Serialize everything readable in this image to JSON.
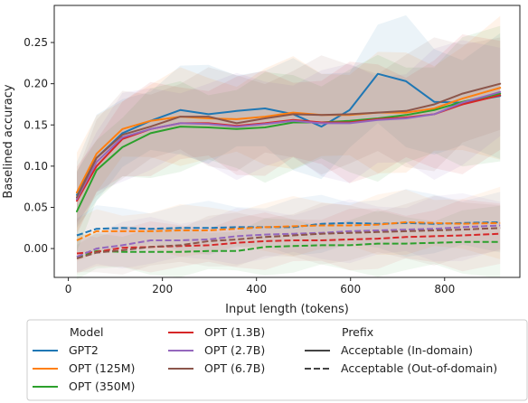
{
  "chart_data": {
    "type": "line",
    "xlabel": "Input length (tokens)",
    "ylabel": "Baselined accuracy",
    "xlim": [
      -30,
      960
    ],
    "ylim": [
      -0.035,
      0.295
    ],
    "xticks": [
      0,
      200,
      400,
      600,
      800
    ],
    "yticks": [
      0.0,
      0.05,
      0.1,
      0.15,
      0.2,
      0.25
    ],
    "ytick_labels": [
      "0.00",
      "0.05",
      "0.10",
      "0.15",
      "0.20",
      "0.25"
    ],
    "grid": false,
    "legend_placement": "below",
    "x": [
      18,
      60,
      115,
      175,
      238,
      298,
      358,
      418,
      478,
      538,
      598,
      658,
      718,
      778,
      838,
      918
    ],
    "series": [
      {
        "name": "GPT2",
        "prefix": "Acceptable (In-domain)",
        "color": "#1f77b4",
        "dash": "solid",
        "values": [
          0.065,
          0.11,
          0.14,
          0.155,
          0.168,
          0.163,
          0.167,
          0.17,
          0.163,
          0.148,
          0.168,
          0.212,
          0.203,
          0.178,
          0.177,
          0.185
        ]
      },
      {
        "name": "OPT (125M)",
        "prefix": "Acceptable (In-domain)",
        "color": "#ff7f0e",
        "dash": "solid",
        "values": [
          0.068,
          0.115,
          0.145,
          0.155,
          0.16,
          0.158,
          0.157,
          0.16,
          0.165,
          0.162,
          0.162,
          0.165,
          0.165,
          0.17,
          0.182,
          0.195
        ]
      },
      {
        "name": "OPT (350M)",
        "prefix": "Acceptable (In-domain)",
        "color": "#2ca02c",
        "dash": "solid",
        "values": [
          0.045,
          0.095,
          0.123,
          0.14,
          0.148,
          0.147,
          0.145,
          0.147,
          0.153,
          0.153,
          0.155,
          0.158,
          0.162,
          0.168,
          0.178,
          0.188
        ]
      },
      {
        "name": "OPT (1.3B)",
        "prefix": "Acceptable (In-domain)",
        "color": "#d62728",
        "dash": "solid",
        "values": [
          0.058,
          0.1,
          0.133,
          0.145,
          0.152,
          0.152,
          0.149,
          0.152,
          0.156,
          0.153,
          0.153,
          0.157,
          0.159,
          0.163,
          0.175,
          0.186
        ]
      },
      {
        "name": "OPT (2.7B)",
        "prefix": "Acceptable (In-domain)",
        "color": "#9467bd",
        "dash": "solid",
        "values": [
          0.06,
          0.105,
          0.135,
          0.145,
          0.152,
          0.151,
          0.148,
          0.151,
          0.155,
          0.152,
          0.152,
          0.156,
          0.158,
          0.163,
          0.177,
          0.19
        ]
      },
      {
        "name": "OPT (6.7B)",
        "prefix": "Acceptable (In-domain)",
        "color": "#8c564b",
        "dash": "solid",
        "values": [
          0.062,
          0.11,
          0.138,
          0.148,
          0.16,
          0.16,
          0.152,
          0.158,
          0.163,
          0.162,
          0.163,
          0.165,
          0.167,
          0.175,
          0.188,
          0.2
        ]
      },
      {
        "name": "GPT2",
        "prefix": "Acceptable (Out-of-domain)",
        "color": "#1f77b4",
        "dash": "dashed",
        "values": [
          0.016,
          0.024,
          0.025,
          0.024,
          0.025,
          0.025,
          0.026,
          0.026,
          0.026,
          0.03,
          0.031,
          0.03,
          0.031,
          0.03,
          0.031,
          0.032
        ]
      },
      {
        "name": "OPT (125M)",
        "prefix": "Acceptable (Out-of-domain)",
        "color": "#ff7f0e",
        "dash": "dashed",
        "values": [
          0.01,
          0.021,
          0.021,
          0.021,
          0.022,
          0.022,
          0.024,
          0.026,
          0.027,
          0.028,
          0.028,
          0.029,
          0.032,
          0.031,
          0.03,
          0.031
        ]
      },
      {
        "name": "OPT (350M)",
        "prefix": "Acceptable (Out-of-domain)",
        "color": "#2ca02c",
        "dash": "dashed",
        "values": [
          -0.01,
          -0.003,
          -0.004,
          -0.004,
          -0.004,
          -0.003,
          -0.003,
          0.002,
          0.003,
          0.004,
          0.004,
          0.006,
          0.006,
          0.007,
          0.008,
          0.008
        ]
      },
      {
        "name": "OPT (1.3B)",
        "prefix": "Acceptable (Out-of-domain)",
        "color": "#d62728",
        "dash": "dashed",
        "values": [
          -0.006,
          -0.004,
          0.001,
          0.002,
          0.003,
          0.004,
          0.007,
          0.009,
          0.01,
          0.01,
          0.011,
          0.012,
          0.014,
          0.015,
          0.016,
          0.018
        ]
      },
      {
        "name": "OPT (2.7B)",
        "prefix": "Acceptable (Out-of-domain)",
        "color": "#9467bd",
        "dash": "dashed",
        "values": [
          -0.01,
          0.0,
          0.004,
          0.01,
          0.01,
          0.011,
          0.015,
          0.017,
          0.018,
          0.019,
          0.021,
          0.022,
          0.023,
          0.024,
          0.026,
          0.028
        ]
      },
      {
        "name": "OPT (6.7B)",
        "prefix": "Acceptable (Out-of-domain)",
        "color": "#8c564b",
        "dash": "dashed",
        "values": [
          -0.012,
          -0.005,
          -0.002,
          0.002,
          0.004,
          0.009,
          0.011,
          0.014,
          0.016,
          0.018,
          0.019,
          0.02,
          0.021,
          0.022,
          0.023,
          0.025
        ]
      }
    ],
    "legend": {
      "model_title": "Model",
      "prefix_title": "Prefix",
      "models": [
        {
          "name": "GPT2",
          "color": "#1f77b4"
        },
        {
          "name": "OPT (125M)",
          "color": "#ff7f0e"
        },
        {
          "name": "OPT (350M)",
          "color": "#2ca02c"
        },
        {
          "name": "OPT (1.3B)",
          "color": "#d62728"
        },
        {
          "name": "OPT (2.7B)",
          "color": "#9467bd"
        },
        {
          "name": "OPT (6.7B)",
          "color": "#8c564b"
        }
      ],
      "prefixes": [
        {
          "name": "Acceptable (In-domain)",
          "dash": "solid"
        },
        {
          "name": "Acceptable (Out-of-domain)",
          "dash": "dashed"
        }
      ]
    }
  }
}
